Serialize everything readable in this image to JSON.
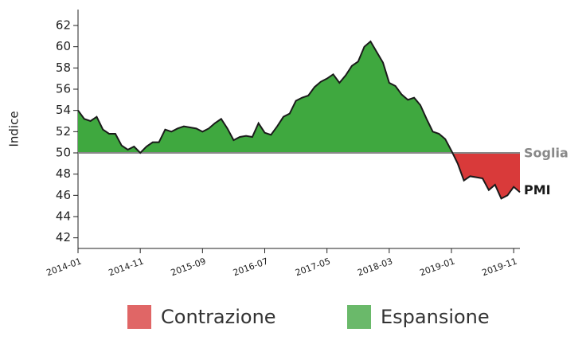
{
  "chart_data": {
    "type": "area",
    "y_label": "Indice",
    "x": [
      "2014-01",
      "2014-02",
      "2014-03",
      "2014-04",
      "2014-05",
      "2014-06",
      "2014-07",
      "2014-08",
      "2014-09",
      "2014-10",
      "2014-11",
      "2014-12",
      "2015-01",
      "2015-02",
      "2015-03",
      "2015-04",
      "2015-05",
      "2015-06",
      "2015-07",
      "2015-08",
      "2015-09",
      "2015-10",
      "2015-11",
      "2015-12",
      "2016-01",
      "2016-02",
      "2016-03",
      "2016-04",
      "2016-05",
      "2016-06",
      "2016-07",
      "2016-08",
      "2016-09",
      "2016-10",
      "2016-11",
      "2016-12",
      "2017-01",
      "2017-02",
      "2017-03",
      "2017-04",
      "2017-05",
      "2017-06",
      "2017-07",
      "2017-08",
      "2017-09",
      "2017-10",
      "2017-11",
      "2017-12",
      "2018-01",
      "2018-02",
      "2018-03",
      "2018-04",
      "2018-05",
      "2018-06",
      "2018-07",
      "2018-08",
      "2018-09",
      "2018-10",
      "2018-11",
      "2018-12",
      "2019-01",
      "2019-02",
      "2019-03",
      "2019-04",
      "2019-05",
      "2019-06",
      "2019-07",
      "2019-08",
      "2019-09",
      "2019-10",
      "2019-11",
      "2019-12"
    ],
    "series": [
      {
        "name": "PMI",
        "color": "#1a1a1a",
        "values": [
          54.0,
          53.2,
          53.0,
          53.4,
          52.2,
          51.8,
          51.8,
          50.7,
          50.3,
          50.6,
          50.0,
          50.6,
          51.0,
          51.0,
          52.2,
          52.0,
          52.3,
          52.5,
          52.4,
          52.3,
          52.0,
          52.3,
          52.8,
          53.2,
          52.3,
          51.2,
          51.5,
          51.6,
          51.5,
          52.8,
          51.9,
          51.7,
          52.5,
          53.4,
          53.7,
          54.9,
          55.2,
          55.4,
          56.2,
          56.7,
          57.0,
          57.4,
          56.6,
          57.3,
          58.2,
          58.6,
          60.0,
          60.5,
          59.5,
          58.5,
          56.6,
          56.3,
          55.5,
          55.0,
          55.2,
          54.5,
          53.2,
          52.0,
          51.8,
          51.3,
          50.2,
          49.0,
          47.4,
          47.8,
          47.7,
          47.6,
          46.5,
          47.0,
          45.7,
          46.0,
          46.8,
          46.3
        ]
      }
    ],
    "threshold": {
      "name": "Soglia",
      "value": 50,
      "color": "#888888"
    },
    "above_color": "#3fa83f",
    "below_color": "#d93a3a",
    "legend": [
      {
        "label": "Contrazione",
        "color": "#e06666"
      },
      {
        "label": "Espansione",
        "color": "#6ab96a"
      }
    ],
    "ylim": [
      41,
      63.5
    ],
    "yticks": [
      42,
      44,
      46,
      48,
      50,
      52,
      54,
      56,
      58,
      60,
      62
    ],
    "xticks": [
      "2014-01",
      "2014-11",
      "2015-09",
      "2016-07",
      "2017-05",
      "2018-03",
      "2019-01",
      "2019-11"
    ]
  }
}
